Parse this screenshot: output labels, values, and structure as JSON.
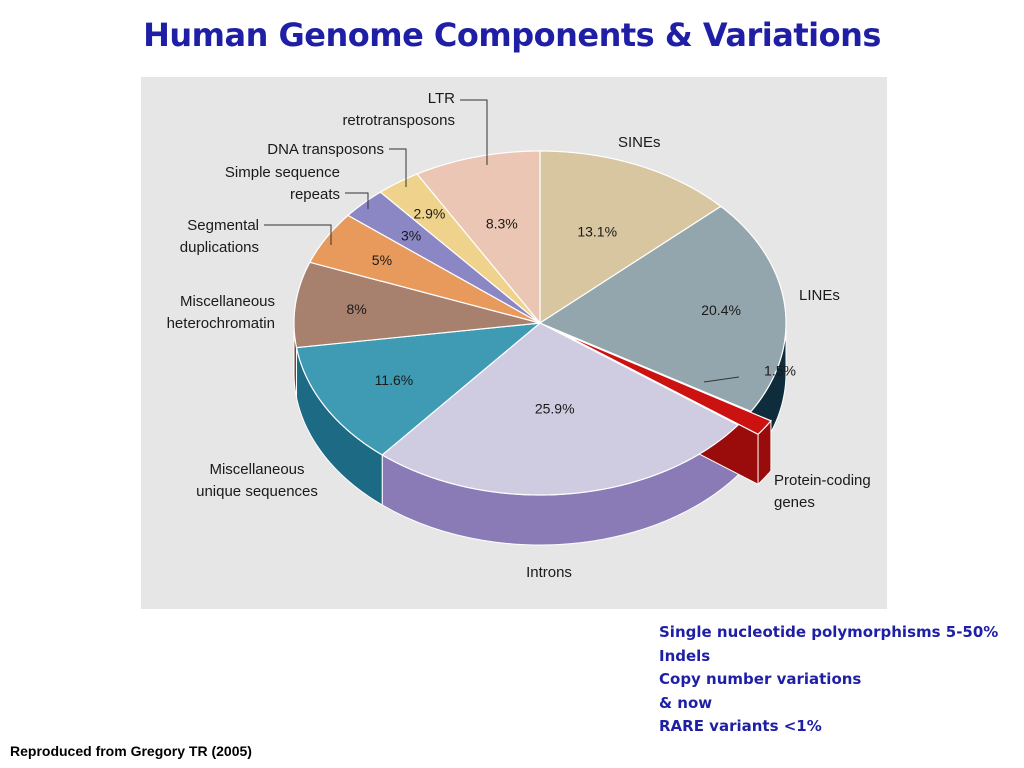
{
  "title": "Human Genome Components & Variations",
  "chart_data": {
    "type": "pie",
    "categories": [
      "SINEs",
      "LINEs",
      "Protein-coding genes",
      "Introns",
      "Miscellaneous unique sequences",
      "Miscellaneous heterochromatin",
      "Segmental duplications",
      "Simple sequence repeats",
      "DNA transposons",
      "LTR retrotransposons"
    ],
    "label_lines": [
      [
        "SINEs"
      ],
      [
        "LINEs"
      ],
      [
        "Protein-coding",
        "genes"
      ],
      [
        "Introns"
      ],
      [
        "Miscellaneous",
        "unique sequences"
      ],
      [
        "Miscellaneous",
        "heterochromatin"
      ],
      [
        "Segmental",
        "duplications"
      ],
      [
        "Simple sequence",
        "repeats"
      ],
      [
        "DNA transposons"
      ],
      [
        "LTR",
        "retrotransposons"
      ]
    ],
    "values": [
      13.1,
      20.4,
      1.5,
      25.9,
      11.6,
      8,
      5,
      3,
      2.9,
      8.3
    ],
    "value_labels": [
      "13.1%",
      "20.4%",
      "1.5%",
      "25.9%",
      "11.6%",
      "8%",
      "5%",
      "3%",
      "2.9%",
      "8.3%"
    ],
    "colors": [
      "#d8c6a1",
      "#93a6ad",
      "#cc1111",
      "#cfcbe0",
      "#3e9bb3",
      "#a7806e",
      "#e89a5c",
      "#8b86c4",
      "#efd38c",
      "#ebc6b4"
    ],
    "side_colors": [
      "#a89466",
      "#0e2c3c",
      "#9a0c0c",
      "#8a7bb6",
      "#1d6a84",
      "#6e4a3b",
      "#b8683a",
      "#5a5590",
      "#b89f58",
      "#b89281"
    ],
    "exploded": [
      "Protein-coding genes"
    ]
  },
  "notes": [
    "Single nucleotide polymorphisms 5-50%",
    "Indels",
    "Copy number variations",
    "& now",
    "RARE variants <1%"
  ],
  "credit": "Reproduced from Gregory TR (2005)"
}
